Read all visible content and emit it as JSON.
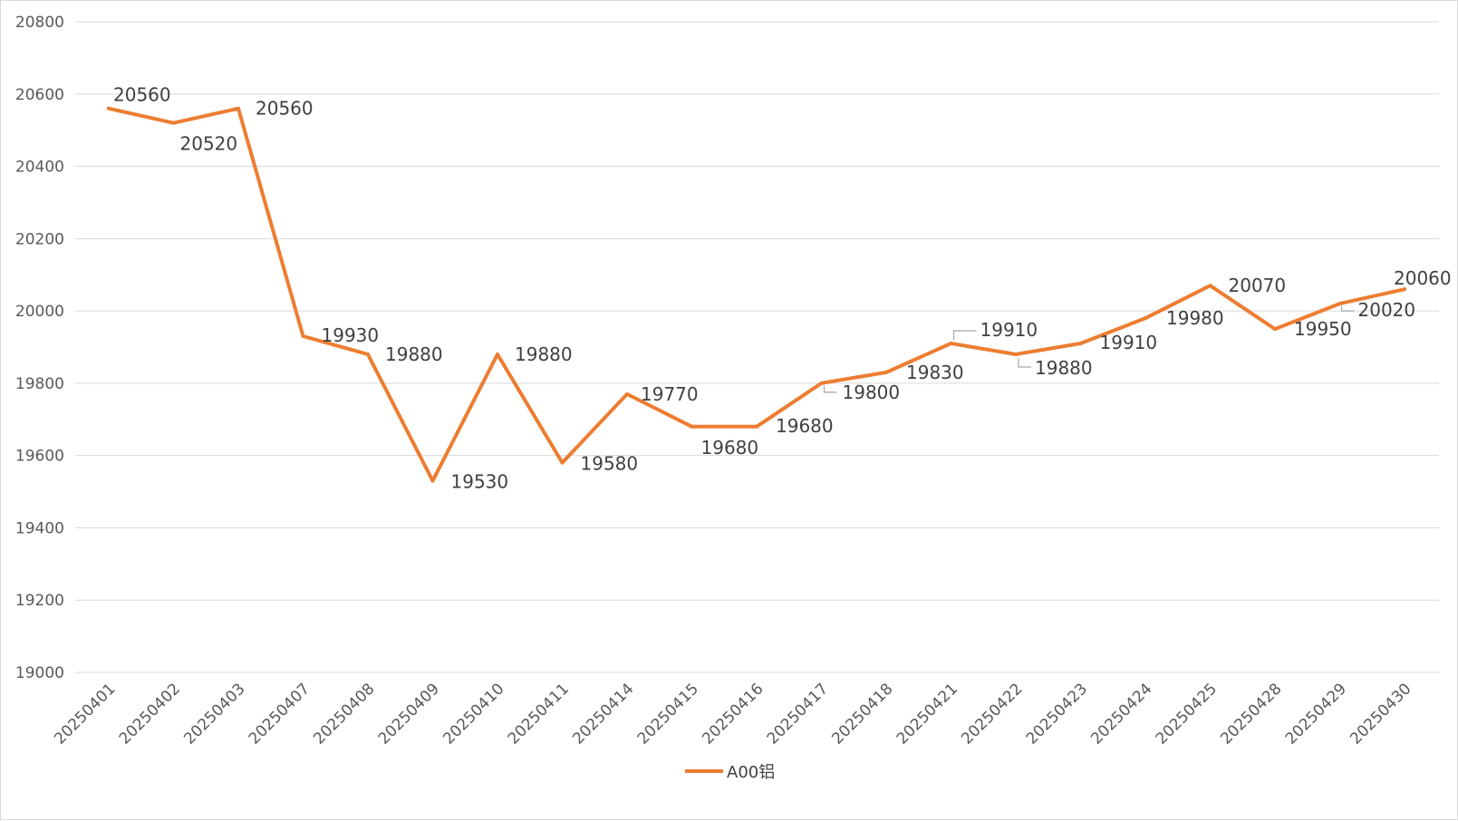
{
  "chart_data": {
    "type": "line",
    "title": "",
    "xlabel": "",
    "ylabel": "",
    "ylim": [
      19000,
      20800
    ],
    "yticks": [
      19000,
      19200,
      19400,
      19600,
      19800,
      20000,
      20200,
      20400,
      20600,
      20800
    ],
    "grid": true,
    "legend_position": "bottom",
    "categories": [
      "20250401",
      "20250402",
      "20250403",
      "20250407",
      "20250408",
      "20250409",
      "20250410",
      "20250411",
      "20250414",
      "20250415",
      "20250416",
      "20250417",
      "20250418",
      "20250421",
      "20250422",
      "20250423",
      "20250424",
      "20250425",
      "20250428",
      "20250429",
      "20250430"
    ],
    "series": [
      {
        "name": "A00铝",
        "color": "#ed7d31",
        "values": [
          20560,
          20520,
          20560,
          19930,
          19880,
          19530,
          19880,
          19580,
          19770,
          19680,
          19680,
          19800,
          19830,
          19910,
          19880,
          19910,
          19980,
          20070,
          19950,
          20020,
          20060
        ]
      }
    ]
  }
}
